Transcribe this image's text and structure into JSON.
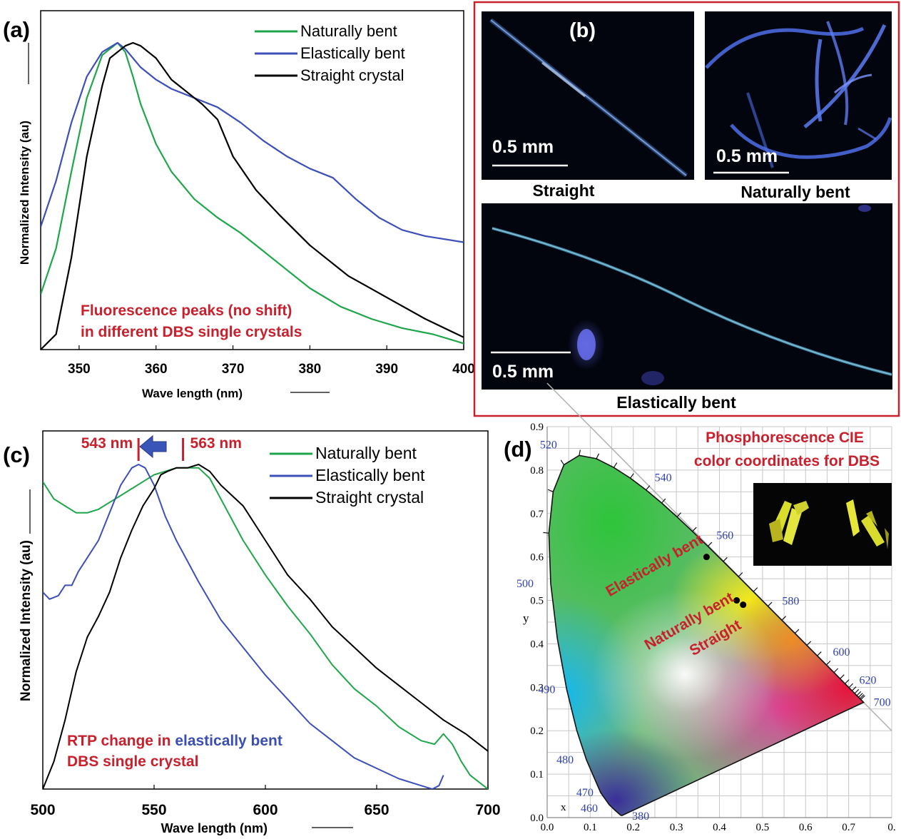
{
  "panels": {
    "a": {
      "tag": "(a)"
    },
    "b": {
      "tag": "(b)",
      "images": [
        {
          "label": "Straight",
          "scale": "0.5 mm"
        },
        {
          "label": "Naturally bent",
          "scale": "0.5 mm"
        },
        {
          "label": "Elastically bent",
          "scale": "0.5 mm"
        }
      ]
    },
    "c": {
      "tag": "(c)"
    },
    "d": {
      "tag": "(d)"
    }
  },
  "colors": {
    "green": "#1fa64b",
    "blue": "#3d4fb8",
    "black": "#000000",
    "red_text": "#c8202c",
    "panel_b_border": "#c8202c"
  },
  "chart_data": [
    {
      "id": "a",
      "type": "line",
      "xlabel": "Wave length (nm)",
      "ylabel": "Normalized Intensity (au)",
      "xlim": [
        345,
        400
      ],
      "xticks": [
        "350",
        "360",
        "370",
        "380",
        "390",
        "400"
      ],
      "annotation": [
        "Fluorescence peaks (no shift)",
        "in different DBS single crystals"
      ],
      "legend_position": "top-right",
      "series": [
        {
          "name": "Naturally bent",
          "color": "#1fa64b",
          "x": [
            345,
            347,
            349,
            351,
            353,
            355,
            356,
            357,
            358,
            360,
            362,
            365,
            368,
            371,
            374,
            377,
            380,
            384,
            388,
            392,
            396,
            400
          ],
          "y": [
            0.18,
            0.33,
            0.58,
            0.82,
            0.96,
            1.0,
            0.97,
            0.89,
            0.8,
            0.67,
            0.58,
            0.49,
            0.43,
            0.38,
            0.32,
            0.26,
            0.2,
            0.14,
            0.1,
            0.07,
            0.05,
            0.02
          ]
        },
        {
          "name": "Elastically bent",
          "color": "#3d4fb8",
          "x": [
            345,
            347,
            349,
            351,
            353,
            355,
            356,
            357,
            358,
            360,
            362,
            365,
            368,
            371,
            374,
            377,
            380,
            383,
            386,
            389,
            392,
            395,
            400
          ],
          "y": [
            0.4,
            0.55,
            0.74,
            0.89,
            0.97,
            1.0,
            0.98,
            0.95,
            0.92,
            0.88,
            0.85,
            0.82,
            0.79,
            0.74,
            0.68,
            0.63,
            0.59,
            0.56,
            0.49,
            0.43,
            0.39,
            0.37,
            0.35
          ]
        },
        {
          "name": "Straight crystal",
          "color": "#000000",
          "x": [
            345,
            347,
            349,
            351,
            353,
            354,
            356,
            357,
            358,
            360,
            362,
            364,
            366,
            368,
            370,
            373,
            376,
            380,
            385,
            390,
            395,
            400
          ],
          "y": [
            0.0,
            0.05,
            0.3,
            0.63,
            0.86,
            0.95,
            0.99,
            1.0,
            0.99,
            0.95,
            0.88,
            0.84,
            0.8,
            0.75,
            0.63,
            0.52,
            0.44,
            0.34,
            0.24,
            0.17,
            0.1,
            0.04
          ]
        }
      ]
    },
    {
      "id": "c",
      "type": "line",
      "xlabel": "Wave length (nm)",
      "ylabel": "Normalized Intensity (au)",
      "xlim": [
        500,
        700
      ],
      "xticks": [
        "500",
        "550",
        "600",
        "650",
        "700"
      ],
      "peak_markers": [
        {
          "value": 543,
          "label": "543 nm"
        },
        {
          "value": 563,
          "label": "563 nm"
        }
      ],
      "annotation": {
        "part1": "RTP change in ",
        "part2": "elastically bent",
        "line2": "DBS single crystal"
      },
      "legend_position": "top-right",
      "series": [
        {
          "name": "Naturally bent",
          "color": "#1fa64b",
          "x": [
            500,
            505,
            510,
            515,
            520,
            525,
            530,
            535,
            540,
            545,
            550,
            555,
            560,
            565,
            570,
            575,
            580,
            590,
            600,
            610,
            620,
            630,
            640,
            650,
            660,
            670,
            676,
            680,
            684,
            688,
            692,
            696,
            700
          ],
          "y": [
            0.89,
            0.84,
            0.82,
            0.8,
            0.8,
            0.81,
            0.83,
            0.85,
            0.87,
            0.89,
            0.91,
            0.92,
            0.93,
            0.93,
            0.93,
            0.9,
            0.84,
            0.72,
            0.62,
            0.53,
            0.45,
            0.36,
            0.29,
            0.24,
            0.18,
            0.14,
            0.13,
            0.16,
            0.13,
            0.08,
            0.04,
            0.02,
            0.0
          ]
        },
        {
          "name": "Elastically bent",
          "color": "#3d4fb8",
          "x": [
            500,
            503,
            507,
            510,
            513,
            516,
            520,
            525,
            530,
            535,
            540,
            543,
            546,
            550,
            555,
            560,
            570,
            580,
            590,
            600,
            610,
            620,
            630,
            640,
            650,
            660,
            670,
            675,
            678,
            680
          ],
          "y": [
            0.57,
            0.55,
            0.56,
            0.59,
            0.59,
            0.63,
            0.67,
            0.72,
            0.8,
            0.88,
            0.93,
            0.94,
            0.93,
            0.88,
            0.79,
            0.72,
            0.6,
            0.49,
            0.41,
            0.33,
            0.26,
            0.19,
            0.14,
            0.09,
            0.06,
            0.03,
            0.01,
            0.0,
            0.01,
            0.04
          ]
        },
        {
          "name": "Straight crystal",
          "color": "#000000",
          "x": [
            500,
            505,
            510,
            515,
            520,
            525,
            530,
            535,
            540,
            545,
            550,
            553,
            556,
            560,
            565,
            570,
            575,
            580,
            590,
            600,
            610,
            620,
            630,
            640,
            650,
            660,
            670,
            680,
            690,
            700
          ],
          "y": [
            0.0,
            0.08,
            0.2,
            0.34,
            0.44,
            0.5,
            0.57,
            0.67,
            0.75,
            0.82,
            0.87,
            0.91,
            0.92,
            0.93,
            0.93,
            0.94,
            0.92,
            0.88,
            0.82,
            0.72,
            0.62,
            0.55,
            0.47,
            0.41,
            0.35,
            0.3,
            0.25,
            0.2,
            0.16,
            0.11
          ]
        }
      ]
    },
    {
      "id": "d",
      "type": "scatter",
      "title": [
        "Phosphorescence CIE",
        "color coordinates for DBS"
      ],
      "xlabel": "x",
      "ylabel": "y",
      "xlim": [
        0.0,
        0.8
      ],
      "ylim": [
        0.0,
        0.9
      ],
      "xticks": [
        "0.0",
        "0.1",
        "0.2",
        "0.3",
        "0.4",
        "0.5",
        "0.6",
        "0.7",
        "0."
      ],
      "yticks": [
        "0.0",
        "0.1",
        "0.2",
        "0.3",
        "0.4",
        "0.5",
        "0.6",
        "0.7",
        "0.8",
        "0.9"
      ],
      "wavelength_labels": [
        "520",
        "540",
        "560",
        "580",
        "600",
        "620",
        "700",
        "500",
        "490",
        "480",
        "470",
        "460",
        "380"
      ],
      "points": [
        {
          "name": "Elastically bent",
          "x": 0.37,
          "y": 0.6
        },
        {
          "name": "Naturally bent",
          "x": 0.44,
          "y": 0.5
        },
        {
          "name": "Straight",
          "x": 0.455,
          "y": 0.49
        }
      ]
    }
  ]
}
